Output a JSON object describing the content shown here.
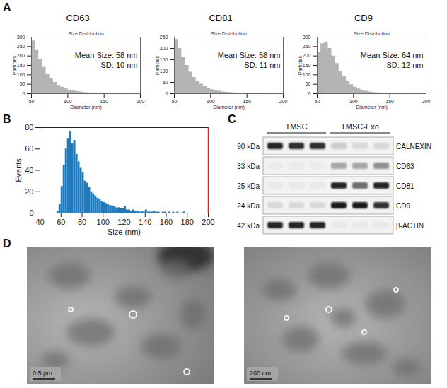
{
  "chart_data": [
    {
      "type": "area",
      "panel": "A",
      "title": "CD63",
      "subtitle": "Size Distribution",
      "annotations": [
        "Mean Size: 58 nm",
        "SD: 10 nm"
      ],
      "x_label": "Diameter (nm)",
      "y_label": "Particles",
      "color": "#b4b4b4",
      "x": [
        50,
        55,
        60,
        65,
        70,
        75,
        80,
        85,
        90,
        95,
        100,
        105,
        110,
        115,
        120,
        125,
        130,
        135,
        140,
        145,
        150,
        155,
        160,
        165,
        170,
        175,
        180,
        185,
        190,
        195,
        200
      ],
      "values": [
        280,
        230,
        180,
        140,
        105,
        80,
        60,
        45,
        35,
        27,
        20,
        15,
        12,
        9,
        7,
        5,
        4,
        3,
        3,
        2,
        2,
        1,
        1,
        1,
        1,
        0,
        0,
        0,
        0,
        0,
        0
      ],
      "xlim": [
        50,
        200
      ],
      "xticks": [
        50,
        100,
        150,
        200
      ],
      "ylim": [
        0,
        300
      ],
      "yticks": [
        0,
        50,
        100,
        150,
        200,
        250,
        300
      ]
    },
    {
      "type": "area",
      "title": "CD81",
      "subtitle": "Size Distribution",
      "annotations": [
        "Mean Size: 58 nm",
        "SD: 11 nm"
      ],
      "x_label": "Diameter (nm)",
      "y_label": "Particles",
      "color": "#b4b4b4",
      "x": [
        50,
        55,
        60,
        65,
        70,
        75,
        80,
        85,
        90,
        95,
        100,
        105,
        110,
        115,
        120,
        125,
        130,
        135,
        140,
        145,
        150,
        155,
        160,
        165,
        170,
        175,
        180,
        185,
        190,
        195,
        200
      ],
      "values": [
        240,
        200,
        160,
        125,
        95,
        72,
        55,
        42,
        32,
        25,
        18,
        14,
        11,
        8,
        6,
        5,
        4,
        3,
        2,
        2,
        2,
        1,
        1,
        1,
        1,
        0,
        0,
        0,
        0,
        0,
        0
      ],
      "xlim": [
        50,
        200
      ],
      "xticks": [
        50,
        100,
        150,
        200
      ],
      "ylim": [
        0,
        250
      ],
      "yticks": [
        0,
        50,
        100,
        150,
        200,
        250
      ]
    },
    {
      "type": "area",
      "title": "CD9",
      "subtitle": "Size Distribution",
      "annotations": [
        "Mean Size: 64 nm",
        "SD: 12 nm"
      ],
      "x_label": "Diameter (nm)",
      "y_label": "Particles",
      "color": "#b4b4b4",
      "x": [
        50,
        55,
        60,
        65,
        70,
        75,
        80,
        85,
        90,
        95,
        100,
        105,
        110,
        115,
        120,
        125,
        130,
        135,
        140,
        145,
        150,
        155,
        160,
        165,
        170,
        175,
        180,
        185,
        190,
        195,
        200
      ],
      "values": [
        220,
        265,
        270,
        240,
        200,
        160,
        120,
        90,
        65,
        48,
        35,
        25,
        18,
        13,
        9,
        7,
        5,
        4,
        3,
        2,
        2,
        1,
        1,
        1,
        0,
        0,
        0,
        0,
        0,
        0,
        0
      ],
      "xlim": [
        50,
        200
      ],
      "xticks": [
        50,
        100,
        150,
        200
      ],
      "ylim": [
        0,
        300
      ],
      "yticks": [
        0,
        50,
        100,
        150,
        200,
        250,
        300
      ]
    },
    {
      "type": "histogram",
      "panel": "B",
      "x_label": "Size (nm)",
      "y_label": "Events",
      "color": "#1f7bbf",
      "bins": [
        56,
        58,
        60,
        62,
        64,
        66,
        68,
        70,
        72,
        74,
        76,
        78,
        80,
        82,
        84,
        86,
        88,
        90,
        92,
        94,
        96,
        98,
        100,
        102,
        104,
        106,
        108,
        110,
        112,
        114,
        116,
        118,
        120,
        122,
        124,
        126,
        128,
        130,
        132,
        134,
        136,
        138,
        140,
        142,
        144,
        146,
        148,
        150,
        152,
        154,
        156,
        158,
        160,
        162,
        164,
        166,
        168,
        170,
        172,
        174,
        176,
        178,
        180
      ],
      "values": [
        2,
        8,
        25,
        45,
        60,
        70,
        76,
        65,
        68,
        55,
        48,
        42,
        38,
        30,
        28,
        24,
        20,
        18,
        16,
        14,
        13,
        11,
        10,
        9,
        8,
        7,
        7,
        6,
        5,
        5,
        4,
        4,
        6,
        3,
        3,
        2,
        3,
        2,
        2,
        1,
        2,
        1,
        3,
        1,
        1,
        1,
        2,
        1,
        1,
        0,
        1,
        1,
        0,
        1,
        0,
        1,
        0,
        1,
        0,
        0,
        1,
        0
      ],
      "xlim": [
        40,
        200
      ],
      "xticks": [
        40,
        60,
        80,
        100,
        120,
        140,
        160,
        180,
        200
      ],
      "ylim": [
        0,
        80
      ],
      "yticks": [
        0,
        20,
        40,
        60,
        80
      ]
    }
  ],
  "western_blot": {
    "panel": "C",
    "groups": [
      {
        "label": "TMSC",
        "lanes": 3
      },
      {
        "label": "TMSC-Exo",
        "lanes": 3
      }
    ],
    "rows": [
      {
        "size": "90 kDa",
        "protein": "CALNEXIN",
        "intensities": [
          0.9,
          0.85,
          0.85,
          0.15,
          0.1,
          0.1
        ]
      },
      {
        "size": "33 kDa",
        "protein": "CD63",
        "intensities": [
          0.03,
          0.03,
          0.03,
          0.35,
          0.35,
          0.45
        ]
      },
      {
        "size": "25 kDa",
        "protein": "CD81",
        "intensities": [
          0.04,
          0.04,
          0.04,
          0.9,
          0.6,
          0.9
        ]
      },
      {
        "size": "24 kDa",
        "protein": "CD9",
        "intensities": [
          0.1,
          0.1,
          0.1,
          0.95,
          0.95,
          0.85
        ]
      },
      {
        "size": "42 kDa",
        "protein": "β-ACTIN",
        "intensities": [
          0.9,
          0.9,
          0.9,
          0.04,
          0.04,
          0.04
        ]
      }
    ]
  },
  "micrographs": {
    "panel": "D",
    "images": [
      {
        "scale_bar": "0.5 μm"
      },
      {
        "scale_bar": "200 nm"
      }
    ]
  }
}
